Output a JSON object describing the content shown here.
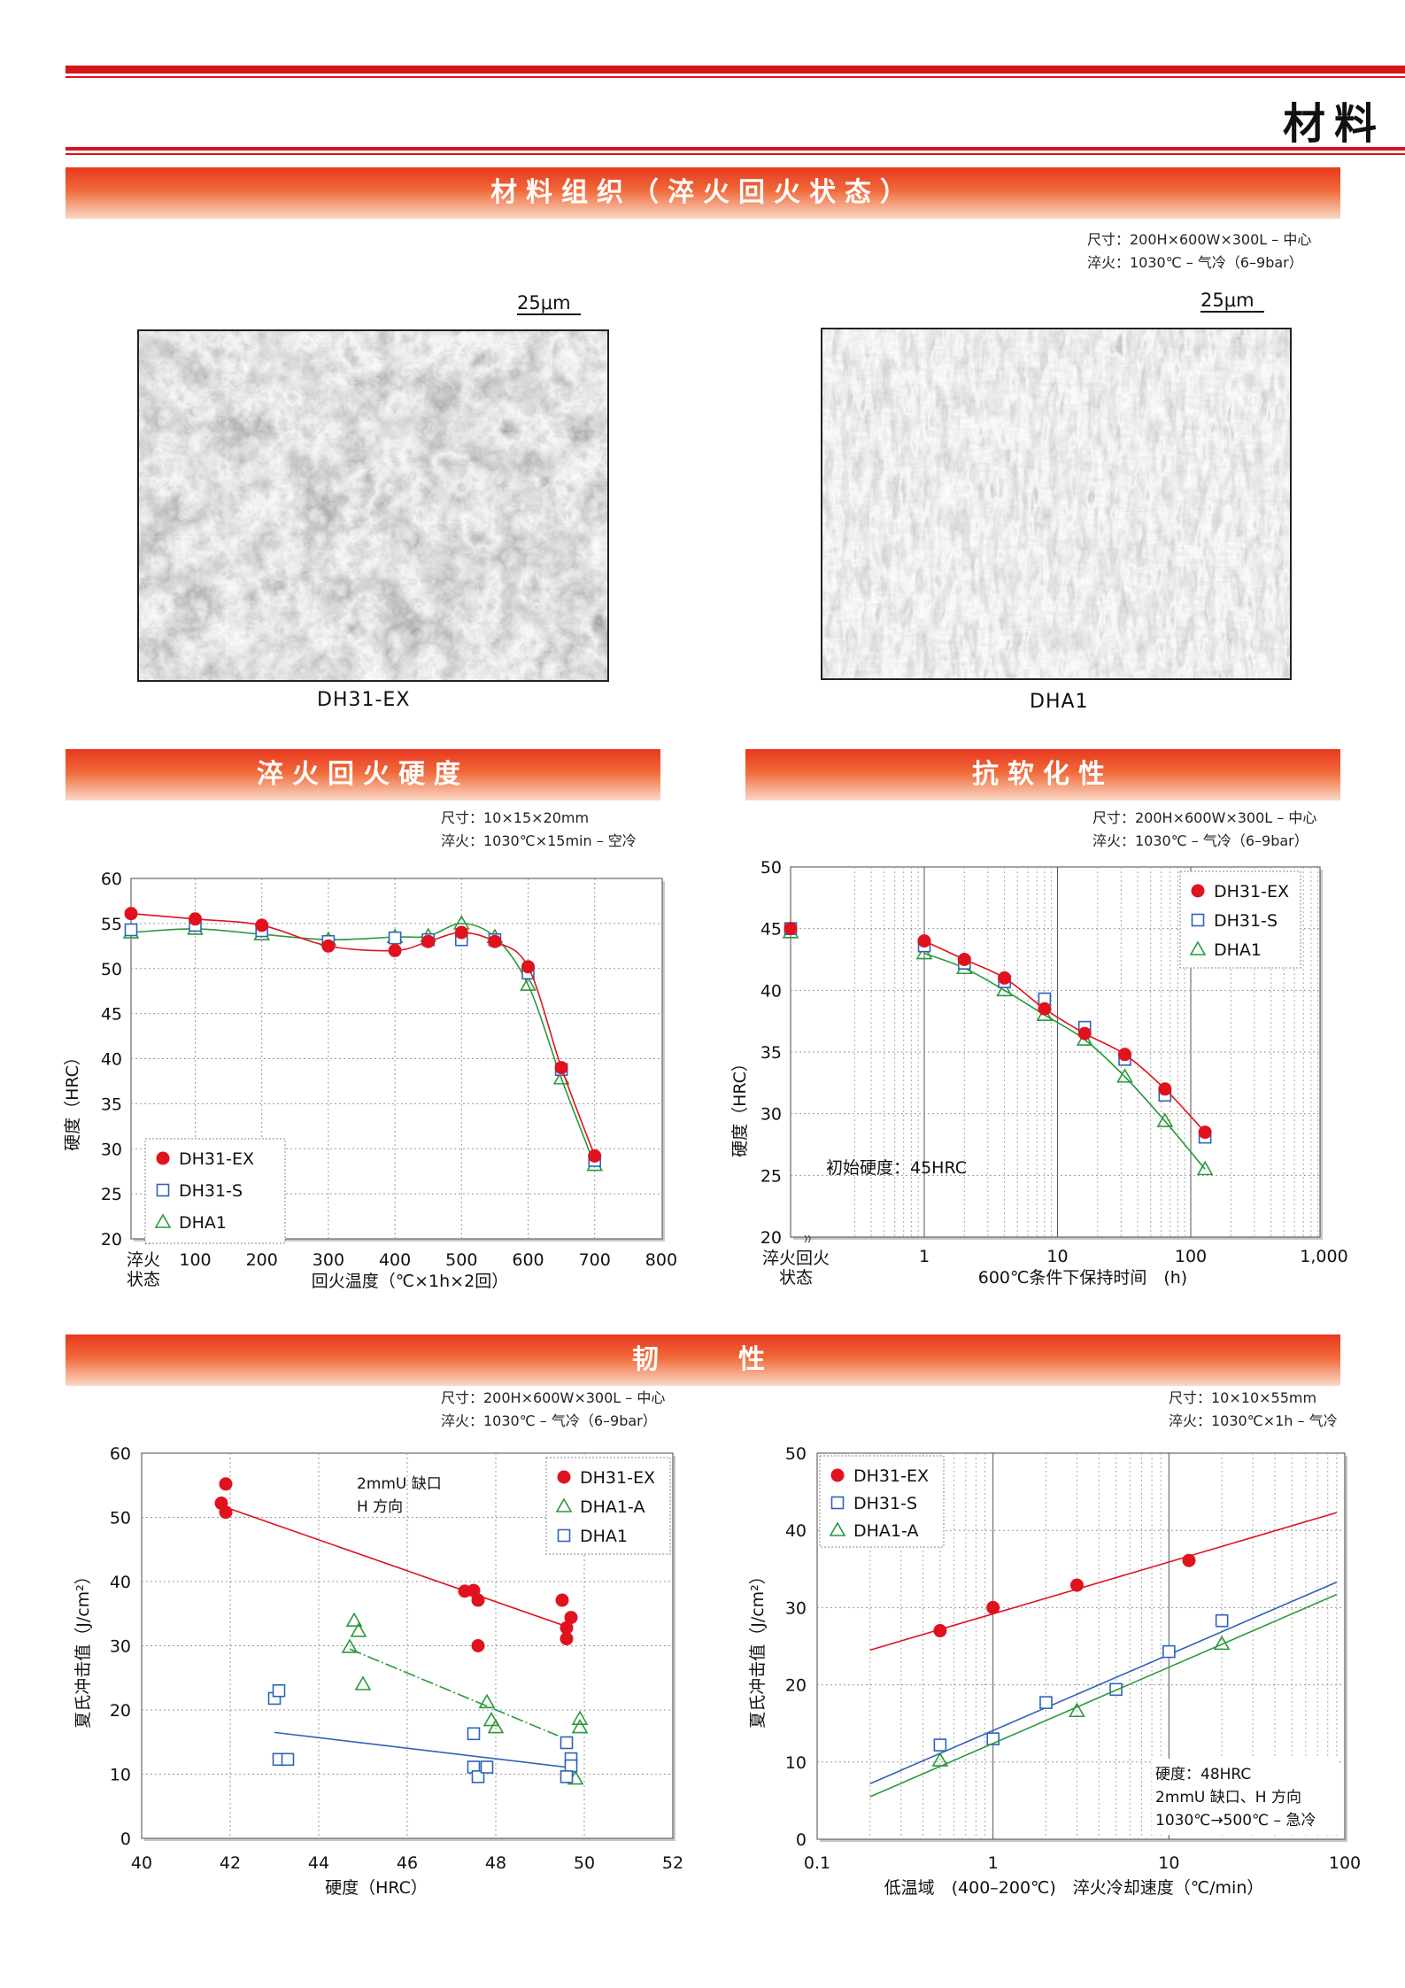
{
  "header": {
    "title": "材料"
  },
  "sections": {
    "structure": {
      "title": "材料组织（淬火回火状态）",
      "spec_line1": "尺寸：200H×600W×300L – 中心",
      "spec_line2": "淬火：1030℃ – 气冷（6–9bar）",
      "scale_left": "25μm",
      "scale_right": "25μm",
      "caption_left": "DH31-EX",
      "caption_right": "DHA1"
    },
    "hardness": {
      "title": "淬火回火硬度",
      "spec_line1": "尺寸：10×15×20mm",
      "spec_line2": "淬火：1030℃×15min – 空冷"
    },
    "softening": {
      "title": "抗软化性",
      "spec_line1": "尺寸：200H×600W×300L – 中心",
      "spec_line2": "淬火：1030℃ – 气冷（6–9bar）"
    },
    "toughness": {
      "title": "韧　　性",
      "left_spec_line1": "尺寸：200H×600W×300L – 中心",
      "left_spec_line2": "淬火：1030℃ – 气冷（6–9bar）",
      "right_spec_line1": "尺寸：10×10×55mm",
      "right_spec_line2": "淬火：1030℃×1h – 气冷"
    }
  },
  "colors": {
    "red": "#e0121e",
    "blue": "#2e63b8",
    "green": "#2a9a3a",
    "accent": "#d7141c"
  },
  "chart_data": [
    {
      "id": "tempering",
      "type": "line",
      "xlabel": "回火温度（℃×1h×2回）",
      "ylabel": "硬度（HRC）",
      "x_first_label": "淬火\n状态",
      "xticks": [
        100,
        200,
        300,
        400,
        500,
        600,
        700,
        800
      ],
      "xlim": [
        0,
        800
      ],
      "ylim": [
        20,
        60
      ],
      "yticks": [
        20,
        25,
        30,
        35,
        40,
        45,
        50,
        55,
        60
      ],
      "legend_position": "bottom-left",
      "series": [
        {
          "name": "DH31-EX",
          "marker": "circle",
          "color": "#e0121e",
          "x": [
            "淬火状态",
            100,
            200,
            300,
            400,
            450,
            500,
            550,
            600,
            650,
            700
          ],
          "y": [
            56.1,
            55.5,
            54.8,
            52.5,
            52.0,
            53.0,
            54.0,
            53.0,
            50.2,
            39.0,
            29.2
          ]
        },
        {
          "name": "DH31-S",
          "marker": "square",
          "color": "#2e63b8",
          "x": [
            "淬火状态",
            100,
            200,
            300,
            400,
            450,
            500,
            550,
            600,
            650,
            700
          ],
          "y": [
            54.3,
            54.8,
            54.2,
            53.0,
            53.4,
            53.2,
            53.2,
            53.2,
            49.5,
            38.8,
            28.7
          ]
        },
        {
          "name": "DHA1",
          "marker": "triangle",
          "color": "#2a9a3a",
          "x": [
            "淬火状态",
            100,
            200,
            300,
            400,
            450,
            500,
            550,
            600,
            650,
            700
          ],
          "y": [
            54.0,
            54.4,
            53.8,
            53.2,
            53.5,
            53.6,
            55.0,
            53.5,
            48.2,
            37.8,
            28.2
          ]
        }
      ]
    },
    {
      "id": "softening",
      "type": "line",
      "xscale": "log",
      "xlabel": "600℃条件下保持时间　(h)",
      "ylabel": "硬度（HRC）",
      "x_first_label": "淬火回火\n状态",
      "xticks": [
        "1",
        "10",
        "100",
        "1,000"
      ],
      "xlim": [
        0.3,
        1000
      ],
      "ylim": [
        20,
        50
      ],
      "yticks": [
        20,
        25,
        30,
        35,
        40,
        45,
        50
      ],
      "annotation": "初始硬度：45HRC",
      "legend_position": "top-right",
      "series": [
        {
          "name": "DH31-EX",
          "marker": "circle",
          "color": "#e0121e",
          "x": [
            "淬火回火状态",
            1,
            2,
            4,
            8,
            16,
            32,
            64,
            128
          ],
          "y": [
            45.0,
            44.0,
            42.5,
            41.0,
            38.5,
            36.5,
            34.8,
            32.0,
            28.5
          ]
        },
        {
          "name": "DH31-S",
          "marker": "square",
          "color": "#2e63b8",
          "x": [
            "淬火回火状态",
            1,
            2,
            4,
            8,
            16,
            32,
            64,
            128
          ],
          "y": [
            45.0,
            43.6,
            42.2,
            40.7,
            39.3,
            37.0,
            34.4,
            31.5,
            28.1
          ]
        },
        {
          "name": "DHA1",
          "marker": "triangle",
          "color": "#2a9a3a",
          "x": [
            "淬火回火状态",
            1,
            2,
            4,
            8,
            16,
            32,
            64,
            128
          ],
          "y": [
            44.7,
            43.0,
            41.8,
            40.0,
            38.0,
            36.0,
            33.0,
            29.4,
            25.5
          ]
        }
      ]
    },
    {
      "id": "impact_vs_hardness",
      "type": "scatter",
      "xlabel": "硬度（HRC）",
      "ylabel": "夏氏冲击值（J/cm²）",
      "xlim": [
        40,
        52
      ],
      "ylim": [
        0,
        60
      ],
      "xticks": [
        40,
        42,
        44,
        46,
        48,
        50,
        52
      ],
      "yticks": [
        0,
        10,
        20,
        30,
        40,
        50,
        60
      ],
      "annotation": [
        "2mmU 缺口",
        "H 方向"
      ],
      "legend_position": "top-right",
      "series": [
        {
          "name": "DH31-EX",
          "marker": "circle",
          "color": "#e0121e",
          "x": [
            41.8,
            41.9,
            41.9,
            47.3,
            47.5,
            47.6,
            47.6,
            49.5,
            49.6,
            49.6,
            49.7
          ],
          "y": [
            52.2,
            55.2,
            50.8,
            38.5,
            38.6,
            37.1,
            30.0,
            37.1,
            31.1,
            32.8,
            34.4
          ],
          "trend": [
            [
              41.8,
              51.8
            ],
            [
              49.6,
              33.0
            ]
          ]
        },
        {
          "name": "DHA1-A",
          "marker": "triangle",
          "color": "#2a9a3a",
          "x": [
            44.7,
            44.8,
            44.9,
            45.0,
            47.8,
            47.9,
            48.0,
            49.9,
            49.9,
            49.8
          ],
          "y": [
            29.8,
            33.9,
            32.3,
            24.0,
            21.2,
            18.4,
            17.3,
            18.6,
            17.3,
            9.3
          ],
          "trend": [
            [
              44.7,
              29.5
            ],
            [
              49.4,
              16.0
            ]
          ]
        },
        {
          "name": "DHA1",
          "marker": "square",
          "color": "#2e63b8",
          "x": [
            43.0,
            43.1,
            43.1,
            43.3,
            47.5,
            47.5,
            47.6,
            47.8,
            49.6,
            49.7,
            49.7,
            49.6
          ],
          "y": [
            21.8,
            23.0,
            12.3,
            12.3,
            16.3,
            11.1,
            9.6,
            11.1,
            14.9,
            12.4,
            11.3,
            9.6
          ],
          "trend": [
            [
              43.0,
              16.5
            ],
            [
              49.7,
              11.0
            ]
          ]
        }
      ]
    },
    {
      "id": "impact_vs_cooling",
      "type": "scatter",
      "xscale": "log",
      "xlabel": "低温域　(400–200℃)　淬火冷却速度（℃/min）",
      "ylabel": "夏氏冲击值（J/cm²）",
      "xlim": [
        0.1,
        100
      ],
      "ylim": [
        0,
        50
      ],
      "xticks": [
        "0.1",
        "1",
        "10",
        "100"
      ],
      "yticks": [
        0,
        10,
        20,
        30,
        40,
        50
      ],
      "annotation": [
        "硬度：48HRC",
        "2mmU 缺口、H 方向",
        "1030℃→500℃ – 急冷"
      ],
      "legend_position": "top-left",
      "series": [
        {
          "name": "DH31-EX",
          "marker": "circle",
          "color": "#e0121e",
          "x": [
            0.5,
            1,
            3,
            13
          ],
          "y": [
            27.0,
            30.0,
            32.9,
            36.1
          ],
          "trend": [
            [
              0.2,
              24.5
            ],
            [
              90,
              42.3
            ]
          ]
        },
        {
          "name": "DH31-S",
          "marker": "square",
          "color": "#2e63b8",
          "x": [
            0.5,
            1,
            2,
            5,
            10,
            20
          ],
          "y": [
            12.2,
            13.0,
            17.7,
            19.4,
            24.3,
            28.3
          ],
          "trend": [
            [
              0.2,
              7.2
            ],
            [
              90,
              33.3
            ]
          ]
        },
        {
          "name": "DHA1-A",
          "marker": "triangle",
          "color": "#2a9a3a",
          "x": [
            0.5,
            3,
            20
          ],
          "y": [
            10.2,
            16.6,
            25.3
          ],
          "trend": [
            [
              0.2,
              5.5
            ],
            [
              90,
              31.7
            ]
          ]
        }
      ]
    }
  ]
}
